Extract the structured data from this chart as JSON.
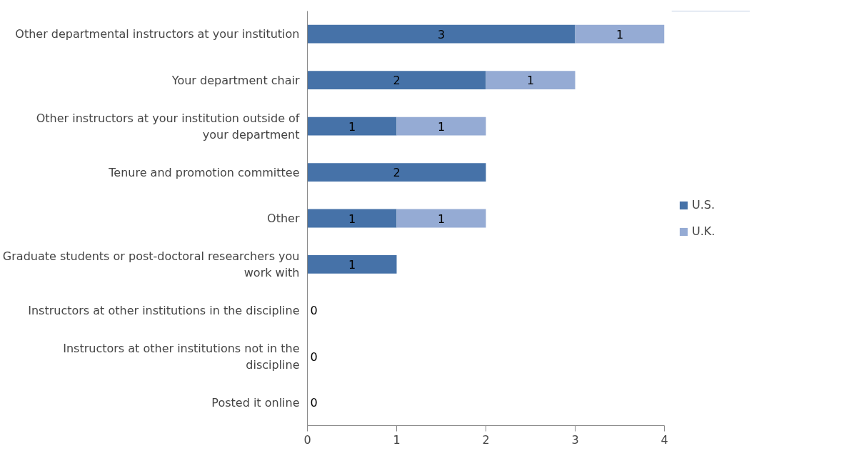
{
  "chart_data": {
    "type": "bar",
    "orientation": "horizontal",
    "stacked": true,
    "categories": [
      "Other departmental instructors at your institution",
      "Your department chair",
      "Other instructors at your institution outside of your department",
      "Tenure and promotion committee",
      "Other",
      "Graduate students or post-doctoral researchers you work with",
      "Instructors at other institutions in the discipline",
      "Instructors at other institutions not in the discipline",
      "Posted it online"
    ],
    "series": [
      {
        "name": "U.S.",
        "color": "#4672a8",
        "values": [
          3,
          2,
          1,
          2,
          1,
          1,
          0,
          0,
          0
        ],
        "value_labels": [
          "3",
          "2",
          "1",
          "2",
          "1",
          "1",
          "0",
          "0",
          "0"
        ]
      },
      {
        "name": "U.K.",
        "color": "#95abd4",
        "values": [
          1,
          1,
          1,
          0,
          1,
          0,
          0,
          0,
          0
        ],
        "value_labels": [
          "1",
          "1",
          "1",
          null,
          "1",
          null,
          null,
          null,
          null
        ]
      }
    ],
    "xlim": [
      0,
      4
    ],
    "xticks": [
      0,
      1,
      2,
      3,
      4
    ],
    "grid": false,
    "legend": "right"
  }
}
